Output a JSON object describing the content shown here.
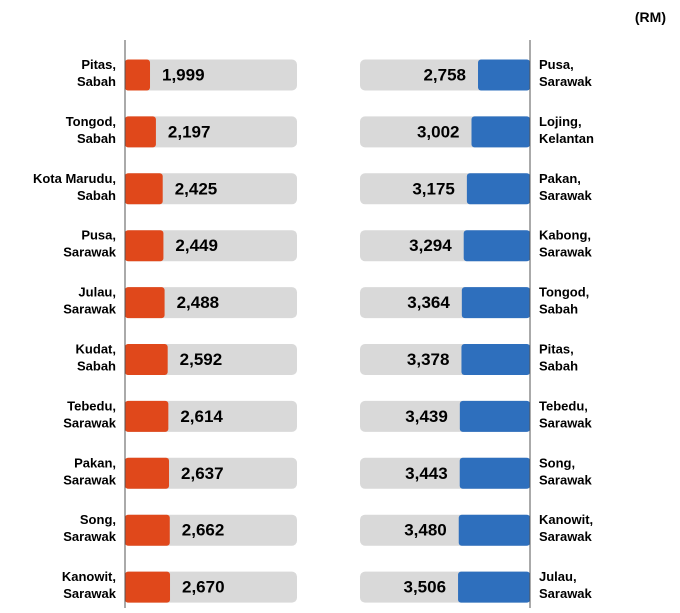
{
  "unit": "(RM)",
  "chart_data": [
    {
      "type": "bar",
      "orientation": "right",
      "color": "#e0481b",
      "background_color": "#d9d9d9",
      "categories": [
        [
          "Pitas,",
          "Sabah"
        ],
        [
          "Tongod,",
          "Sabah"
        ],
        [
          "Kota Marudu,",
          "Sabah"
        ],
        [
          "Pusa,",
          "Sarawak"
        ],
        [
          "Julau,",
          "Sarawak"
        ],
        [
          "Kudat,",
          "Sabah"
        ],
        [
          "Tebedu,",
          "Sarawak"
        ],
        [
          "Pakan,",
          "Sarawak"
        ],
        [
          "Song,",
          "Sarawak"
        ],
        [
          "Kanowit,",
          "Sarawak"
        ]
      ],
      "values": [
        1999,
        2197,
        2425,
        2449,
        2488,
        2592,
        2614,
        2637,
        2662,
        2670
      ],
      "value_labels": [
        "1,999",
        "2,197",
        "2,425",
        "2,449",
        "2,488",
        "2,592",
        "2,614",
        "2,637",
        "2,662",
        "2,670"
      ],
      "xlim": [
        1160,
        6930
      ]
    },
    {
      "type": "bar",
      "orientation": "left",
      "color": "#2e6fbd",
      "background_color": "#d9d9d9",
      "categories": [
        [
          "Pusa,",
          "Sarawak"
        ],
        [
          "Lojing,",
          "Kelantan"
        ],
        [
          "Pakan,",
          "Sarawak"
        ],
        [
          "Kabong,",
          "Sarawak"
        ],
        [
          "Tongod,",
          "Sabah"
        ],
        [
          "Pitas,",
          "Sabah"
        ],
        [
          "Tebedu,",
          "Sarawak"
        ],
        [
          "Song,",
          "Sarawak"
        ],
        [
          "Kanowit,",
          "Sarawak"
        ],
        [
          "Julau,",
          "Sarawak"
        ]
      ],
      "values": [
        2758,
        3002,
        3175,
        3294,
        3364,
        3378,
        3439,
        3443,
        3480,
        3506
      ],
      "value_labels": [
        "2,758",
        "3,002",
        "3,175",
        "3,294",
        "3,364",
        "3,378",
        "3,439",
        "3,443",
        "3,480",
        "3,506"
      ],
      "xlim": [
        811,
        7178
      ]
    }
  ]
}
